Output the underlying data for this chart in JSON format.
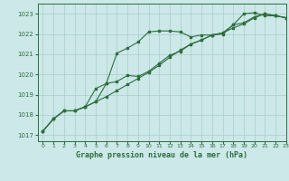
{
  "title": "Graphe pression niveau de la mer (hPa)",
  "background_color": "#cce8e8",
  "grid_color": "#aacccc",
  "line_color": "#2d6e3e",
  "xlim": [
    -0.5,
    23
  ],
  "ylim": [
    1016.7,
    1023.5
  ],
  "yticks": [
    1017,
    1018,
    1019,
    1020,
    1021,
    1022,
    1023
  ],
  "xticks": [
    0,
    1,
    2,
    3,
    4,
    5,
    6,
    7,
    8,
    9,
    10,
    11,
    12,
    13,
    14,
    15,
    16,
    17,
    18,
    19,
    20,
    21,
    22,
    23
  ],
  "line1": [
    1017.2,
    1017.8,
    1018.2,
    1018.2,
    1018.4,
    1018.65,
    1019.55,
    1021.05,
    1021.3,
    1021.6,
    1022.1,
    1022.15,
    1022.15,
    1022.1,
    1021.85,
    1021.95,
    1021.95,
    1022.0,
    1022.45,
    1023.0,
    1023.05,
    1022.9,
    1022.9,
    1022.8
  ],
  "line2": [
    1017.2,
    1017.8,
    1018.2,
    1018.2,
    1018.4,
    1019.3,
    1019.55,
    1019.65,
    1019.95,
    1019.9,
    1020.15,
    1020.55,
    1020.95,
    1021.15,
    1021.5,
    1021.7,
    1021.95,
    1022.05,
    1022.45,
    1022.55,
    1022.85,
    1023.0,
    1022.9,
    1022.8
  ],
  "line3": [
    1017.2,
    1017.8,
    1018.2,
    1018.2,
    1018.4,
    1018.65,
    1018.9,
    1019.2,
    1019.5,
    1019.8,
    1020.1,
    1020.45,
    1020.85,
    1021.2,
    1021.5,
    1021.7,
    1021.95,
    1022.05,
    1022.3,
    1022.5,
    1022.8,
    1023.0,
    1022.9,
    1022.8
  ]
}
